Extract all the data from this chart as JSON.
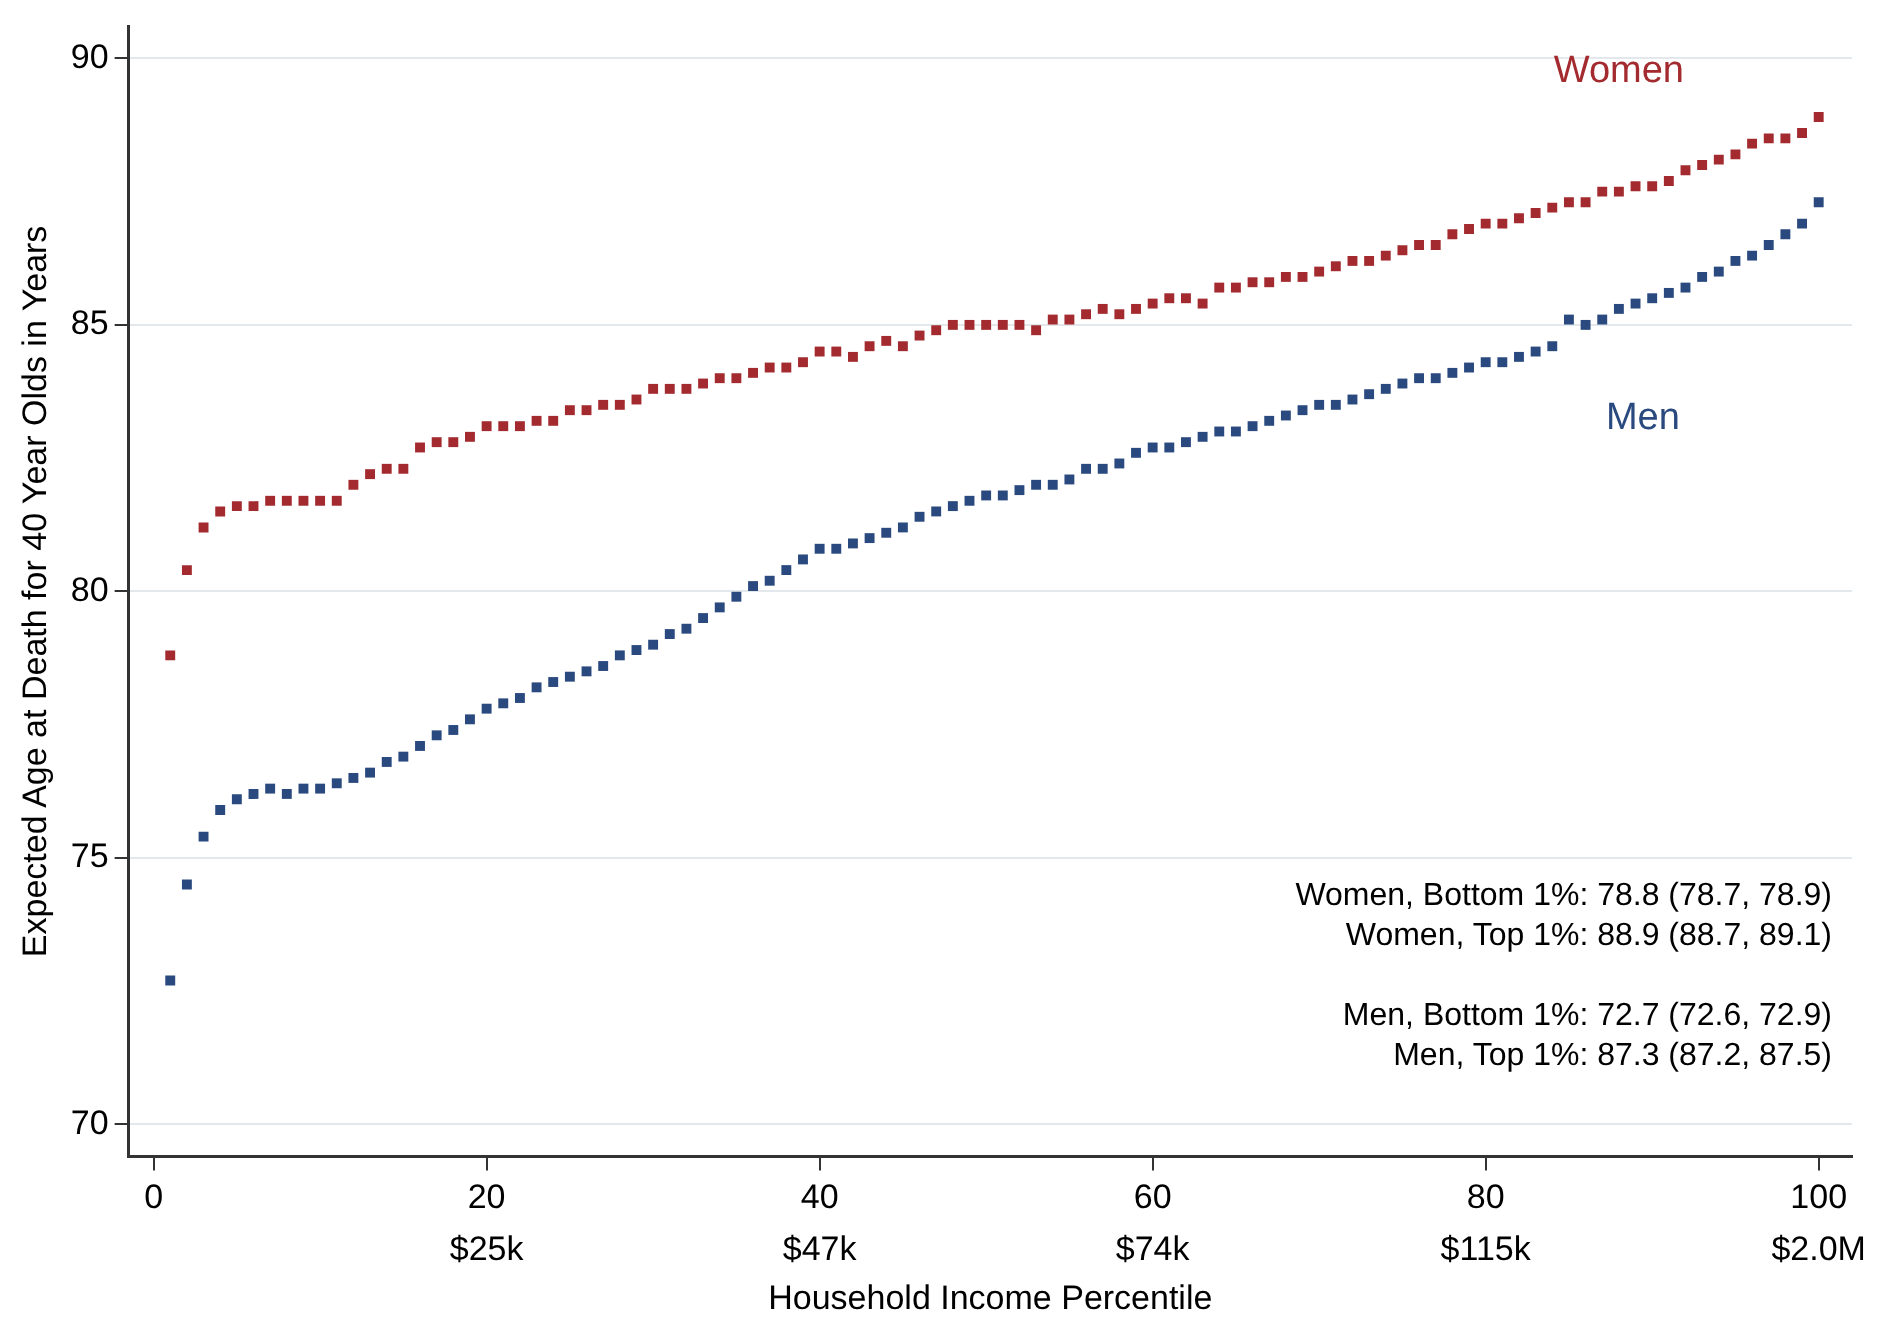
{
  "chart_data": {
    "type": "scatter",
    "xlabel": "Household Income Percentile",
    "ylabel": "Expected Age at Death for 40 Year Olds in Years",
    "x": [
      1,
      2,
      3,
      4,
      5,
      6,
      7,
      8,
      9,
      10,
      11,
      12,
      13,
      14,
      15,
      16,
      17,
      18,
      19,
      20,
      21,
      22,
      23,
      24,
      25,
      26,
      27,
      28,
      29,
      30,
      31,
      32,
      33,
      34,
      35,
      36,
      37,
      38,
      39,
      40,
      41,
      42,
      43,
      44,
      45,
      46,
      47,
      48,
      49,
      50,
      51,
      52,
      53,
      54,
      55,
      56,
      57,
      58,
      59,
      60,
      61,
      62,
      63,
      64,
      65,
      66,
      67,
      68,
      69,
      70,
      71,
      72,
      73,
      74,
      75,
      76,
      77,
      78,
      79,
      80,
      81,
      82,
      83,
      84,
      85,
      86,
      87,
      88,
      89,
      90,
      91,
      92,
      93,
      94,
      95,
      96,
      97,
      98,
      99,
      100
    ],
    "series": [
      {
        "name": "Women",
        "color": "#a32a2e",
        "values": [
          78.8,
          80.4,
          81.2,
          81.5,
          81.6,
          81.6,
          81.7,
          81.7,
          81.7,
          81.7,
          81.7,
          82.0,
          82.2,
          82.3,
          82.3,
          82.7,
          82.8,
          82.8,
          82.9,
          83.1,
          83.1,
          83.1,
          83.2,
          83.2,
          83.4,
          83.4,
          83.5,
          83.5,
          83.6,
          83.8,
          83.8,
          83.8,
          83.9,
          84.0,
          84.0,
          84.1,
          84.2,
          84.2,
          84.3,
          84.5,
          84.5,
          84.4,
          84.6,
          84.7,
          84.6,
          84.8,
          84.9,
          85.0,
          85.0,
          85.0,
          85.0,
          85.0,
          84.9,
          85.1,
          85.1,
          85.2,
          85.3,
          85.2,
          85.3,
          85.4,
          85.5,
          85.5,
          85.4,
          85.7,
          85.7,
          85.8,
          85.8,
          85.9,
          85.9,
          86.0,
          86.1,
          86.2,
          86.2,
          86.3,
          86.4,
          86.5,
          86.5,
          86.7,
          86.8,
          86.9,
          86.9,
          87.0,
          87.1,
          87.2,
          87.3,
          87.3,
          87.5,
          87.5,
          87.6,
          87.6,
          87.7,
          87.9,
          88.0,
          88.1,
          88.2,
          88.4,
          88.5,
          88.5,
          88.6,
          88.9
        ]
      },
      {
        "name": "Men",
        "color": "#2a4a7f",
        "values": [
          72.7,
          74.5,
          75.4,
          75.9,
          76.1,
          76.2,
          76.3,
          76.2,
          76.3,
          76.3,
          76.4,
          76.5,
          76.6,
          76.8,
          76.9,
          77.1,
          77.3,
          77.4,
          77.6,
          77.8,
          77.9,
          78.0,
          78.2,
          78.3,
          78.4,
          78.5,
          78.6,
          78.8,
          78.9,
          79.0,
          79.2,
          79.3,
          79.5,
          79.7,
          79.9,
          80.1,
          80.2,
          80.4,
          80.6,
          80.8,
          80.8,
          80.9,
          81.0,
          81.1,
          81.2,
          81.4,
          81.5,
          81.6,
          81.7,
          81.8,
          81.8,
          81.9,
          82.0,
          82.0,
          82.1,
          82.3,
          82.3,
          82.4,
          82.6,
          82.7,
          82.7,
          82.8,
          82.9,
          83.0,
          83.0,
          83.1,
          83.2,
          83.3,
          83.4,
          83.5,
          83.5,
          83.6,
          83.7,
          83.8,
          83.9,
          84.0,
          84.0,
          84.1,
          84.2,
          84.3,
          84.3,
          84.4,
          84.5,
          84.6,
          85.1,
          85.0,
          85.1,
          85.3,
          85.4,
          85.5,
          85.6,
          85.7,
          85.9,
          86.0,
          86.2,
          86.3,
          86.5,
          86.7,
          86.9,
          87.3
        ]
      }
    ],
    "xlim": [
      -1.5,
      102
    ],
    "xticks": [
      0,
      20,
      40,
      60,
      80,
      100
    ],
    "ylim": [
      69.4,
      90.6
    ],
    "yticks": [
      70,
      75,
      80,
      85,
      90
    ],
    "grid": "y",
    "marker": "square",
    "legend": false,
    "annotations": [
      "Women, Bottom 1%: 78.8 (78.7, 78.9)",
      "Women, Top 1%: 88.9 (88.7, 89.1)",
      "Men, Bottom 1%: 72.7 (72.6, 72.9)",
      "Men, Top 1%: 87.3 (87.2, 87.5)",
      "$25k",
      "$47k",
      "$74k",
      "$115k",
      "$2.0M"
    ]
  }
}
